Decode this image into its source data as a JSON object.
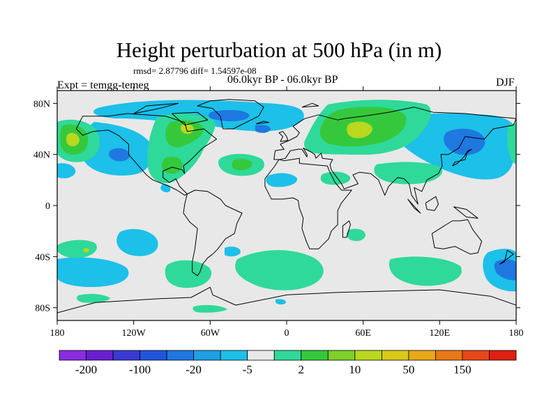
{
  "title": "Height perturbation at 500 hPa (in m)",
  "stats_line": "rmsd= 2.87796 diff= 1.54597e-08",
  "experiment_label": "Expt = temgg-temeg",
  "period_label": "06.0kyr BP - 06.0kyr BP",
  "season_label": "DJF",
  "map": {
    "projection": "cylindrical-equidistant",
    "lon_range": [
      -180,
      180
    ],
    "lat_range": [
      -90,
      90
    ],
    "background_color": "#e8e8e8",
    "coastline_color": "#000000",
    "lat_ticks": [
      {
        "value": 80,
        "label": "80N"
      },
      {
        "value": 40,
        "label": "40N"
      },
      {
        "value": 0,
        "label": "0"
      },
      {
        "value": -40,
        "label": "40S"
      },
      {
        "value": -80,
        "label": "80S"
      }
    ],
    "lon_ticks": [
      {
        "value": -180,
        "label": "180"
      },
      {
        "value": -120,
        "label": "120W"
      },
      {
        "value": -60,
        "label": "60W"
      },
      {
        "value": 0,
        "label": "0"
      },
      {
        "value": 60,
        "label": "60E"
      },
      {
        "value": 120,
        "label": "120E"
      },
      {
        "value": 180,
        "label": "180"
      }
    ]
  },
  "colorbar": {
    "colors": [
      "#8a2be2",
      "#6a1fd0",
      "#3a3ad6",
      "#2255dd",
      "#1e78e0",
      "#1fa0e4",
      "#1cc0e8",
      "#e8e8e8",
      "#2fd99a",
      "#36c83c",
      "#7ed02a",
      "#b9d81e",
      "#d8c818",
      "#e8a818",
      "#e87818",
      "#e84818",
      "#e02010"
    ],
    "labels": [
      {
        "boundary": 1,
        "text": "-200"
      },
      {
        "boundary": 3,
        "text": "-100"
      },
      {
        "boundary": 5,
        "text": "-20"
      },
      {
        "boundary": 7,
        "text": "-5"
      },
      {
        "boundary": 9,
        "text": "2"
      },
      {
        "boundary": 11,
        "text": "10"
      },
      {
        "boundary": 13,
        "text": "50"
      },
      {
        "boundary": 15,
        "text": "150"
      }
    ]
  }
}
